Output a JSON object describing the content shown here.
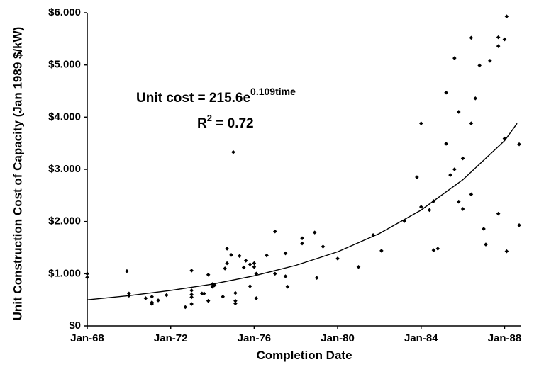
{
  "chart_data": {
    "type": "scatter",
    "xlabel": "Completion Date",
    "ylabel": "Unit Construction Cost of Capacity (Jan 1989 $/kW)",
    "equation": {
      "text": "Unit cost = 215.6e",
      "sup": "0.109time"
    },
    "r2": {
      "text": "R",
      "sup": "2",
      "rest": " = 0.72"
    },
    "color": "#000000",
    "xlim": [
      1968,
      1988.8
    ],
    "ylim": [
      0,
      6000
    ],
    "xticks": [
      {
        "value": 1968,
        "label": "Jan-68"
      },
      {
        "value": 1972,
        "label": "Jan-72"
      },
      {
        "value": 1976,
        "label": "Jan-76"
      },
      {
        "value": 1980,
        "label": "Jan-80"
      },
      {
        "value": 1984,
        "label": "Jan-84"
      },
      {
        "value": 1988,
        "label": "Jan-88"
      }
    ],
    "yticks": [
      {
        "value": 0,
        "label": "$0"
      },
      {
        "value": 1000,
        "label": "$1.000"
      },
      {
        "value": 2000,
        "label": "$2.000"
      },
      {
        "value": 3000,
        "label": "$3.000"
      },
      {
        "value": 4000,
        "label": "$4.000"
      },
      {
        "value": 5000,
        "label": "$5.000"
      },
      {
        "value": 6000,
        "label": "$6.000"
      }
    ],
    "points": {
      "x": [
        1968.0,
        1968.0,
        1969.9,
        1970.0,
        1970.0,
        1970.8,
        1971.1,
        1971.1,
        1971.1,
        1971.4,
        1971.8,
        1972.7,
        1973.0,
        1973.0,
        1973.0,
        1973.0,
        1973.0,
        1973.5,
        1973.6,
        1973.8,
        1973.8,
        1974.0,
        1974.0,
        1974.1,
        1974.5,
        1974.6,
        1974.7,
        1974.7,
        1974.9,
        1975.0,
        1975.1,
        1975.1,
        1975.1,
        1975.3,
        1975.5,
        1975.6,
        1975.8,
        1975.8,
        1976.0,
        1976.0,
        1976.1,
        1976.1,
        1976.6,
        1977.0,
        1977.0,
        1977.5,
        1977.5,
        1977.6,
        1978.3,
        1978.3,
        1978.9,
        1979.0,
        1979.3,
        1980.0,
        1981.0,
        1981.7,
        1982.1,
        1983.2,
        1983.8,
        1984.0,
        1984.0,
        1984.4,
        1984.6,
        1984.6,
        1984.8,
        1985.2,
        1985.2,
        1985.4,
        1985.6,
        1985.6,
        1985.8,
        1985.8,
        1986.0,
        1986.0,
        1986.4,
        1986.4,
        1986.4,
        1986.6,
        1986.8,
        1987.0,
        1987.1,
        1987.3,
        1987.7,
        1987.7,
        1987.7,
        1988.0,
        1988.0,
        1988.1,
        1988.1,
        1988.7,
        1988.7
      ],
      "values": [
        1000,
        930,
        1050,
        620,
        580,
        530,
        560,
        450,
        420,
        490,
        590,
        360,
        1060,
        680,
        600,
        550,
        420,
        620,
        620,
        980,
        480,
        800,
        750,
        780,
        560,
        1100,
        1200,
        1480,
        1360,
        3330,
        630,
        480,
        430,
        1340,
        1120,
        1250,
        1180,
        760,
        1200,
        1130,
        1000,
        530,
        1350,
        1810,
        1000,
        1390,
        950,
        750,
        1680,
        1580,
        1790,
        920,
        1520,
        1290,
        1130,
        1740,
        1440,
        2010,
        2850,
        3880,
        2280,
        2220,
        2390,
        1450,
        1480,
        4470,
        3490,
        2890,
        5130,
        3000,
        4100,
        2380,
        3210,
        2240,
        5520,
        3880,
        2520,
        4360,
        4990,
        1860,
        1560,
        5080,
        5530,
        5360,
        2150,
        5490,
        3590,
        5930,
        1430,
        3480,
        1930
      ]
    },
    "trend": {
      "x": [
        1968,
        1970,
        1972,
        1974,
        1976,
        1978,
        1980,
        1982,
        1984,
        1986,
        1988,
        1988.6
      ],
      "values": [
        500,
        580,
        680,
        800,
        960,
        1160,
        1420,
        1770,
        2220,
        2800,
        3550,
        3880
      ]
    }
  }
}
